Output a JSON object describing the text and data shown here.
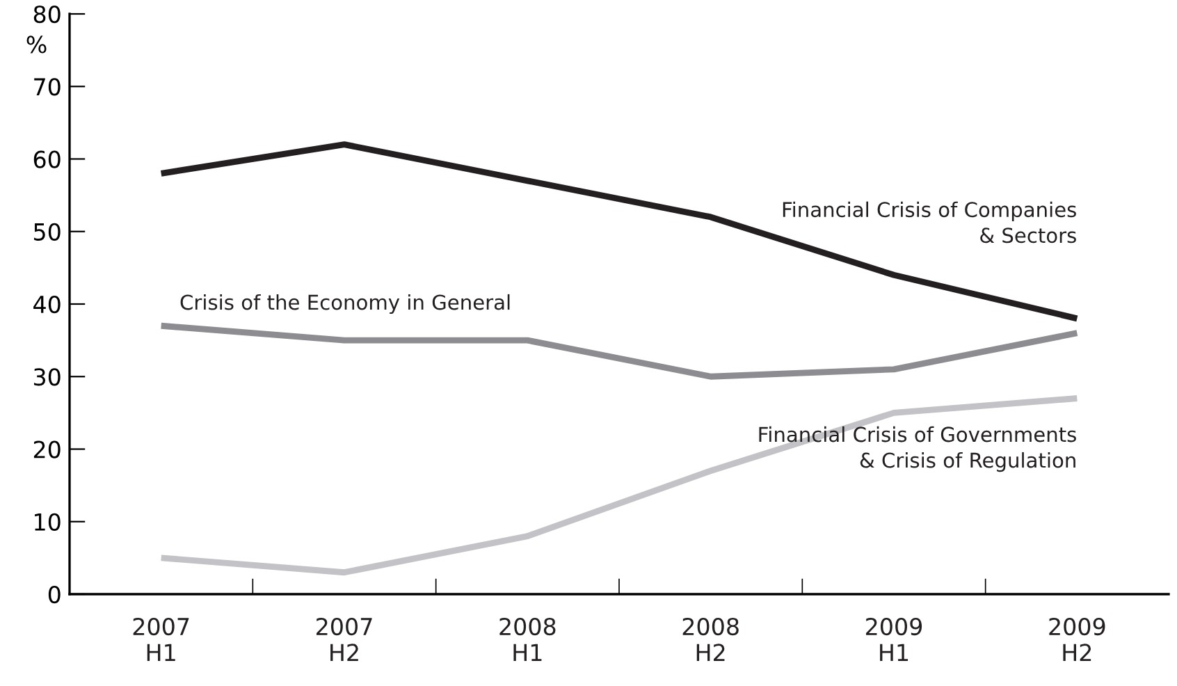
{
  "chart_data": {
    "type": "line",
    "ylabel": "%",
    "categories": [
      "2007\nH1",
      "2007\nH2",
      "2008\nH1",
      "2008\nH2",
      "2009\nH1",
      "2009\nH2"
    ],
    "series": [
      {
        "name": "Financial Crisis of Companies\n& Sectors",
        "color": "#231f20",
        "values": [
          58,
          62,
          57,
          52,
          44,
          38
        ]
      },
      {
        "name": "Crisis of the Economy in General",
        "color": "#8d8d91",
        "values": [
          37,
          35,
          35,
          30,
          31,
          36
        ]
      },
      {
        "name": "Financial Crisis of Governments\n& Crisis of Regulation",
        "color": "#c3c3c7",
        "values": [
          5,
          3,
          8,
          17,
          25,
          27
        ]
      }
    ],
    "ylim": [
      0,
      80
    ],
    "yticks": [
      0,
      10,
      20,
      30,
      40,
      50,
      60,
      70,
      80
    ],
    "grid": false,
    "legend": false,
    "marker": "none",
    "line_style": "solid"
  }
}
